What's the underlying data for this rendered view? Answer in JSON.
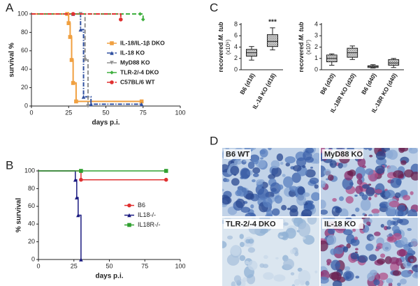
{
  "chart_data": [
    {
      "type": "line",
      "step": true,
      "panel": "A",
      "xlabel": "days p.i.",
      "ylabel": "survival %",
      "xlim": [
        0,
        100
      ],
      "xticks": [
        0,
        25,
        50,
        75,
        100
      ],
      "ylim": [
        0,
        100
      ],
      "yticks": [
        0,
        20,
        40,
        60,
        80,
        100
      ],
      "legend": "lower right",
      "series": [
        {
          "name": "IL-18/IL-1β DKO",
          "color": "#f0a040",
          "style": "solid",
          "marker": "square",
          "x": [
            0,
            24,
            25,
            26,
            27,
            28,
            30,
            74
          ],
          "values": [
            100,
            100,
            90,
            75,
            50,
            25,
            5,
            5
          ]
        },
        {
          "name": "IL-18 KO",
          "color": "#3050a0",
          "style": "dashdot",
          "marker": "triangle",
          "x": [
            0,
            28,
            33,
            35,
            40,
            74
          ],
          "values": [
            100,
            100,
            83,
            10,
            2,
            2
          ]
        },
        {
          "name": "MyD88 KO",
          "color": "#909090",
          "style": "dashed",
          "marker": "triangle-down",
          "x": [
            0,
            33,
            36,
            38
          ],
          "values": [
            100,
            100,
            50,
            0
          ]
        },
        {
          "name": "TLR-2/-4 DKO",
          "color": "#40b040",
          "style": "dashed",
          "marker": "diamond",
          "x": [
            0,
            73,
            75
          ],
          "values": [
            100,
            100,
            94
          ]
        },
        {
          "name": "C57BL/6 WT",
          "color": "#e03030",
          "style": "dashdot",
          "marker": "circle",
          "x": [
            0,
            28,
            60
          ],
          "values": [
            100,
            100,
            94
          ]
        }
      ]
    },
    {
      "type": "line",
      "step": true,
      "panel": "B",
      "xlabel": "days p.i.",
      "ylabel": "% survival",
      "xlim": [
        0,
        100
      ],
      "xticks": [
        0,
        25,
        50,
        75,
        100
      ],
      "ylim": [
        0,
        100
      ],
      "yticks": [
        0,
        20,
        40,
        60,
        80,
        100
      ],
      "legend": "center right",
      "series": [
        {
          "name": "B6",
          "color": "#e03030",
          "style": "solid",
          "marker": "circle",
          "x": [
            0,
            30,
            90
          ],
          "values": [
            100,
            90,
            90
          ]
        },
        {
          "name": "IL18-/-",
          "color": "#1a1a80",
          "style": "solid",
          "marker": "triangle",
          "x": [
            0,
            26,
            27,
            28,
            30
          ],
          "values": [
            100,
            90,
            70,
            50,
            0
          ]
        },
        {
          "name": "IL18R-/-",
          "color": "#30a030",
          "style": "solid",
          "marker": "square",
          "x": [
            0,
            30,
            90
          ],
          "values": [
            100,
            100,
            100
          ]
        }
      ]
    },
    {
      "type": "box",
      "panel": "C",
      "ylabel": "recovered",
      "ylabel_italic": "M. tub",
      "yunit": "(x10⁵)",
      "ylim": [
        0,
        8
      ],
      "yticks": [
        0,
        2,
        4,
        6,
        8
      ],
      "categories": [
        "B6 (d18)",
        "IL-18 KO (d18)"
      ],
      "boxes": [
        {
          "min": 1.7,
          "q1": 2.4,
          "median": 3.0,
          "q3": 3.6,
          "max": 4.1
        },
        {
          "min": 3.5,
          "q1": 4.1,
          "median": 5.0,
          "q3": 6.2,
          "max": 7.4
        }
      ],
      "annotations": [
        {
          "text": "***",
          "x": "IL-18 KO (d18)"
        }
      ]
    },
    {
      "type": "box",
      "ylabel": "recovered",
      "ylabel_italic": "M. tub",
      "yunit": "(x10⁷)",
      "ylim": [
        0,
        4
      ],
      "yticks": [
        0,
        1,
        2,
        3,
        4
      ],
      "categories": [
        "B6 (d20)",
        "IL-18R KO (d20)",
        "B6 (d40)",
        "IL-18R KO (d40)"
      ],
      "boxes": [
        {
          "min": 0.4,
          "q1": 0.7,
          "median": 1.0,
          "q3": 1.3,
          "max": 1.4
        },
        {
          "min": 0.9,
          "q1": 1.1,
          "median": 1.5,
          "q3": 1.9,
          "max": 2.1
        },
        {
          "min": 0.15,
          "q1": 0.2,
          "median": 0.3,
          "q3": 0.35,
          "max": 0.45
        },
        {
          "min": 0.2,
          "q1": 0.4,
          "median": 0.6,
          "q3": 0.9,
          "max": 1.0
        }
      ]
    }
  ],
  "micrographs": {
    "panel": "D",
    "labels": [
      "B6 WT",
      "MyD88 KO",
      "TLR-2/-4 DKO",
      "IL-18 KO"
    ]
  }
}
